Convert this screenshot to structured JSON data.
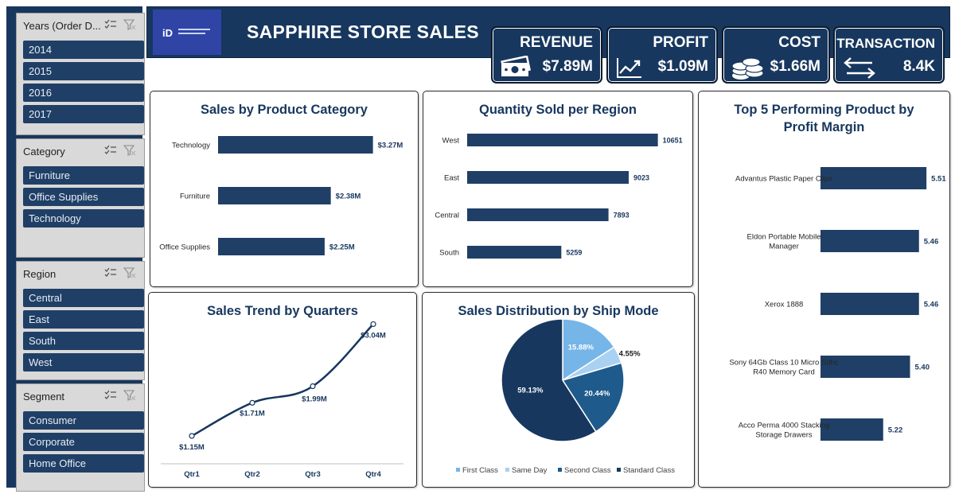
{
  "header": {
    "title": "SAPPHIRE STORE SALES"
  },
  "kpis": [
    {
      "label": "REVENUE",
      "value": "$7.89M",
      "icon": "cash-icon"
    },
    {
      "label": "PROFIT",
      "value": "$1.09M",
      "icon": "trend-up-icon"
    },
    {
      "label": "COST",
      "value": "$1.66M",
      "icon": "coins-icon"
    },
    {
      "label": "TRANSACTION",
      "value": "8.4K",
      "icon": "exchange-arrows-icon"
    }
  ],
  "slicers": [
    {
      "title": "Years (Order D...",
      "items": [
        "2014",
        "2015",
        "2016",
        "2017"
      ]
    },
    {
      "title": "Category",
      "items": [
        "Furniture",
        "Office Supplies",
        "Technology"
      ]
    },
    {
      "title": "Region",
      "items": [
        "Central",
        "East",
        "South",
        "West"
      ]
    },
    {
      "title": "Segment",
      "items": [
        "Consumer",
        "Corporate",
        "Home Office"
      ]
    }
  ],
  "colors": {
    "navy": "#17375e",
    "bar": "#1f3f66",
    "first_class": "#76b5e7",
    "same_day": "#a9d1f2",
    "second_class": "#1f5a8c",
    "standard_class": "#17375e"
  },
  "chart_data": [
    {
      "id": "category",
      "type": "bar",
      "orientation": "horizontal",
      "title": "Sales by Product Category",
      "categories": [
        "Technology",
        "Furniture",
        "Office Supplies"
      ],
      "values": [
        3.27,
        2.38,
        2.25
      ],
      "labels": [
        "$3.27M",
        "$2.38M",
        "$2.25M"
      ],
      "xlim": [
        0,
        4.2
      ]
    },
    {
      "id": "region",
      "type": "bar",
      "orientation": "horizontal",
      "title": "Quantity Sold per Region",
      "categories": [
        "West",
        "East",
        "Central",
        "South"
      ],
      "values": [
        10651,
        9023,
        7893,
        5259
      ],
      "labels": [
        "10651",
        "9023",
        "7893",
        "5259"
      ],
      "xlim": [
        0,
        12000
      ]
    },
    {
      "id": "quarters",
      "type": "line",
      "title": "Sales Trend by Quarters",
      "categories": [
        "Qtr1",
        "Qtr2",
        "Qtr3",
        "Qtr4"
      ],
      "values": [
        1.15,
        1.71,
        1.99,
        3.04
      ],
      "labels": [
        "$1.15M",
        "$1.71M",
        "$1.99M",
        "$3.04M"
      ],
      "ylim": [
        0.8,
        3.1
      ]
    },
    {
      "id": "shipmode",
      "type": "pie",
      "title": "Sales Distribution by Ship Mode",
      "slices": [
        {
          "name": "First Class",
          "value": 15.88,
          "label": "15.88%"
        },
        {
          "name": "Same Day",
          "value": 4.55,
          "label": "4.55%"
        },
        {
          "name": "Second Class",
          "value": 20.44,
          "label": "20.44%"
        },
        {
          "name": "Standard Class",
          "value": 59.13,
          "label": "59.13%"
        }
      ],
      "legend": "bottom"
    },
    {
      "id": "margin",
      "type": "bar",
      "orientation": "horizontal",
      "title": "Top 5 Performing Product by Profit Margin",
      "categories": [
        "Advantus Plastic Paper Clips",
        "Eldon Portable Mobile Manager",
        "Xerox 1888",
        "Sony 64Gb Class 10 Micro Sdhc R40 Memory Card",
        "Acco Perma 4000 Stacking Storage Drawers"
      ],
      "values": [
        5.51,
        5.46,
        5.46,
        5.4,
        5.22
      ],
      "labels": [
        "5.51",
        "5.46",
        "5.46",
        "5.40",
        "5.22"
      ],
      "xlim": [
        4.8,
        5.6
      ]
    }
  ]
}
